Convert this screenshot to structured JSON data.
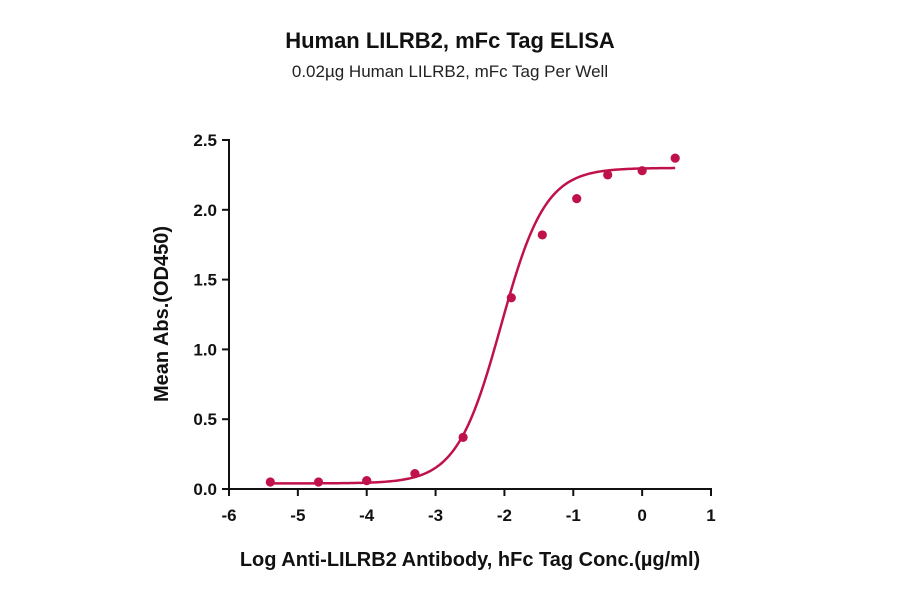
{
  "chart_data": {
    "type": "scatter",
    "title": "Human LILRB2, mFc Tag ELISA",
    "subtitle": "0.02µg Human LILRB2, mFc Tag Per Well",
    "xlabel": "Log Anti-LILRB2 Antibody, hFc Tag Conc.(µg/ml)",
    "ylabel": "Mean Abs.(OD450)",
    "xlim": [
      -6,
      1
    ],
    "ylim": [
      0,
      2.5
    ],
    "x_ticks": [
      "-6",
      "-5",
      "-4",
      "-3",
      "-2",
      "-1",
      "0",
      "1"
    ],
    "y_ticks": [
      "0.0",
      "0.5",
      "1.0",
      "1.5",
      "2.0",
      "2.5"
    ],
    "color": "#c0124a",
    "series": [
      {
        "x": [
          -5.4,
          -4.7,
          -4.0,
          -3.3,
          -2.6,
          -1.9,
          -1.45,
          -0.95,
          -0.5,
          0.0,
          0.48
        ],
        "y": [
          0.05,
          0.05,
          0.06,
          0.11,
          0.37,
          1.37,
          1.82,
          2.08,
          2.25,
          2.28,
          2.37
        ]
      }
    ],
    "fit": {
      "model": "4PL",
      "bottom": 0.04,
      "top": 2.3,
      "logEC50": -2.05,
      "hill": 1.35,
      "x_range": [
        -5.4,
        0.48
      ]
    },
    "grid": false,
    "legend": "none"
  }
}
